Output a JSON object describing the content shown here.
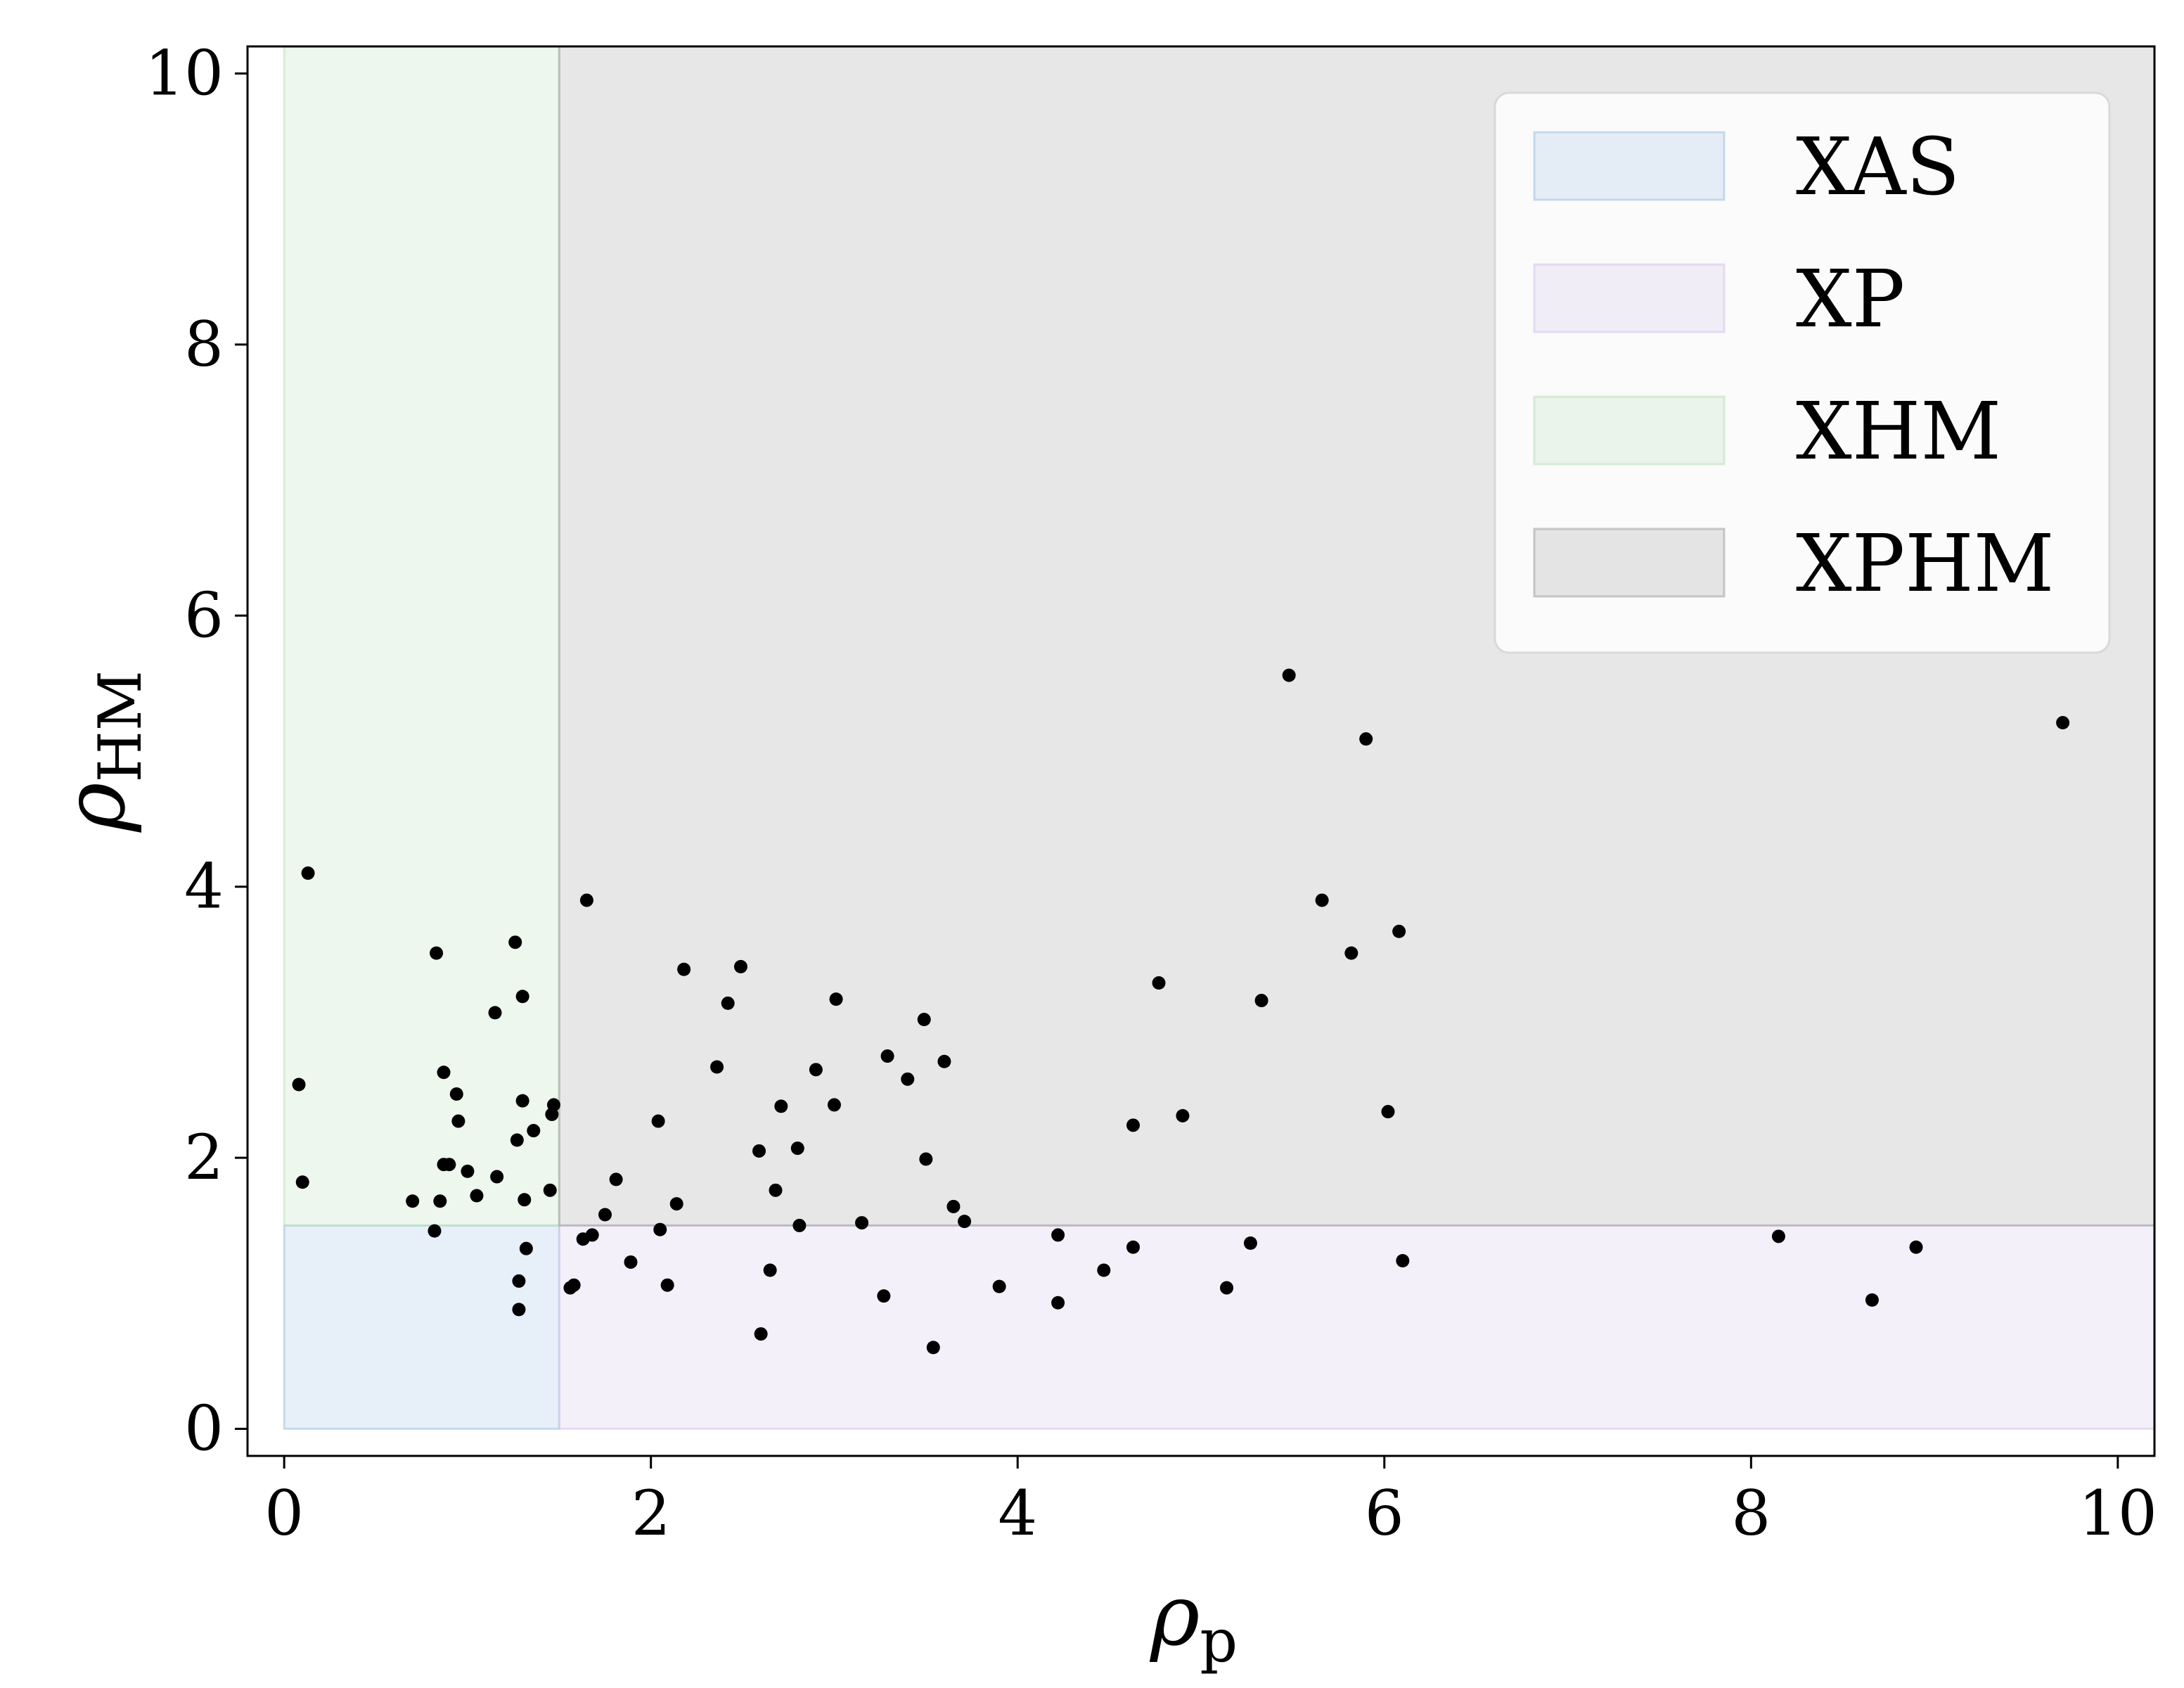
{
  "chart_data": {
    "type": "scatter",
    "title": "",
    "xlabel": "ρ",
    "xlabel_sub": "p",
    "ylabel": "ρ",
    "ylabel_sub": "HM",
    "xlim": [
      -0.2,
      10.2
    ],
    "ylim": [
      -0.2,
      10.2
    ],
    "xticks": [
      "0",
      "2",
      "4",
      "6",
      "8",
      "10"
    ],
    "yticks": [
      "0",
      "2",
      "4",
      "6",
      "8",
      "10"
    ],
    "grid": false,
    "legend_position": "top-right",
    "regions": [
      {
        "name": "XAS",
        "x": [
          0,
          1.5
        ],
        "y": [
          0,
          1.5
        ],
        "color": "#a9c6e6"
      },
      {
        "name": "XP",
        "x": [
          1.5,
          10.2
        ],
        "y": [
          0,
          1.5
        ],
        "color": "#d9c8ee"
      },
      {
        "name": "XHM",
        "x": [
          0,
          1.5
        ],
        "y": [
          1.5,
          10.2
        ],
        "color": "#bfe3bf"
      },
      {
        "name": "XPHM",
        "x": [
          1.5,
          10.2
        ],
        "y": [
          1.5,
          10.2
        ],
        "color": "#a8a8a8"
      }
    ],
    "points": [
      [
        0.13,
        4.1
      ],
      [
        0.08,
        2.54
      ],
      [
        0.1,
        1.82
      ],
      [
        0.7,
        1.68
      ],
      [
        0.82,
        1.46
      ],
      [
        0.83,
        3.51
      ],
      [
        0.85,
        1.68
      ],
      [
        0.87,
        2.63
      ],
      [
        0.87,
        1.95
      ],
      [
        0.9,
        1.95
      ],
      [
        0.94,
        2.47
      ],
      [
        0.95,
        2.27
      ],
      [
        1.0,
        1.9
      ],
      [
        1.05,
        1.72
      ],
      [
        1.15,
        3.07
      ],
      [
        1.16,
        1.86
      ],
      [
        1.26,
        3.59
      ],
      [
        1.27,
        2.13
      ],
      [
        1.28,
        1.09
      ],
      [
        1.28,
        0.88
      ],
      [
        1.3,
        3.19
      ],
      [
        1.3,
        2.42
      ],
      [
        1.31,
        1.69
      ],
      [
        1.32,
        1.33
      ],
      [
        1.36,
        2.2
      ],
      [
        1.45,
        1.76
      ],
      [
        1.46,
        2.32
      ],
      [
        1.47,
        2.39
      ],
      [
        1.56,
        1.04
      ],
      [
        1.58,
        1.06
      ],
      [
        1.63,
        1.4
      ],
      [
        1.65,
        3.9
      ],
      [
        1.68,
        1.43
      ],
      [
        1.75,
        1.58
      ],
      [
        1.81,
        1.84
      ],
      [
        1.89,
        1.23
      ],
      [
        2.04,
        2.27
      ],
      [
        2.05,
        1.47
      ],
      [
        2.09,
        1.06
      ],
      [
        2.14,
        1.66
      ],
      [
        2.18,
        3.39
      ],
      [
        2.36,
        2.67
      ],
      [
        2.42,
        3.14
      ],
      [
        2.49,
        3.41
      ],
      [
        2.59,
        2.05
      ],
      [
        2.6,
        0.7
      ],
      [
        2.65,
        1.17
      ],
      [
        2.68,
        1.76
      ],
      [
        2.71,
        2.38
      ],
      [
        2.8,
        2.07
      ],
      [
        2.81,
        1.5
      ],
      [
        2.9,
        2.65
      ],
      [
        3.0,
        2.39
      ],
      [
        3.01,
        3.17
      ],
      [
        3.15,
        1.52
      ],
      [
        3.27,
        0.98
      ],
      [
        3.29,
        2.75
      ],
      [
        3.4,
        2.58
      ],
      [
        3.49,
        3.02
      ],
      [
        3.5,
        1.99
      ],
      [
        3.54,
        0.6
      ],
      [
        3.6,
        2.71
      ],
      [
        3.65,
        1.64
      ],
      [
        3.71,
        1.53
      ],
      [
        3.9,
        1.05
      ],
      [
        4.22,
        1.43
      ],
      [
        4.22,
        0.93
      ],
      [
        4.47,
        1.17
      ],
      [
        4.63,
        2.24
      ],
      [
        4.63,
        1.34
      ],
      [
        4.77,
        3.29
      ],
      [
        4.9,
        2.31
      ],
      [
        5.14,
        1.04
      ],
      [
        5.27,
        1.37
      ],
      [
        5.33,
        3.16
      ],
      [
        5.48,
        5.56
      ],
      [
        5.66,
        3.9
      ],
      [
        5.82,
        3.51
      ],
      [
        5.9,
        5.09
      ],
      [
        6.02,
        2.34
      ],
      [
        6.08,
        3.67
      ],
      [
        6.1,
        1.24
      ],
      [
        8.15,
        1.42
      ],
      [
        8.66,
        0.95
      ],
      [
        8.9,
        1.34
      ],
      [
        9.7,
        5.21
      ]
    ]
  }
}
